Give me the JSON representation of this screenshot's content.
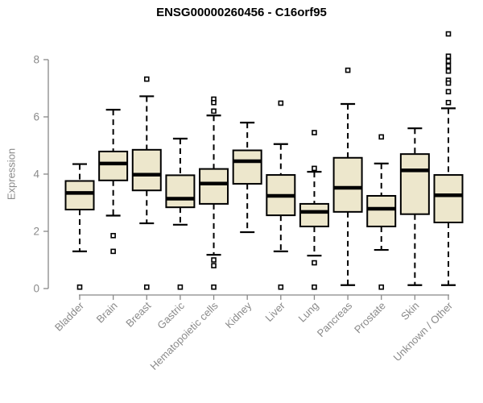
{
  "chart_data": {
    "type": "boxplot",
    "title": "ENSG00000260456 - C16orf95",
    "ylabel": "Expression",
    "xlabel": "",
    "ylim": [
      0,
      8
    ],
    "yticks": [
      0,
      2,
      4,
      6,
      8
    ],
    "grid": false,
    "legend": "none",
    "categories": [
      "Bladder",
      "Brain",
      "Breast",
      "Gastric",
      "Hematopoietic cells",
      "Kidney",
      "Liver",
      "Lung",
      "Pancreas",
      "Prostate",
      "Skin",
      "Unknown / Other"
    ],
    "series": [
      {
        "category": "Bladder",
        "low": 1.3,
        "q1": 2.76,
        "median": 3.34,
        "q3": 3.76,
        "high": 4.35,
        "outliers": [
          0.05
        ]
      },
      {
        "category": "Brain",
        "low": 2.55,
        "q1": 3.78,
        "median": 4.37,
        "q3": 4.79,
        "high": 6.25,
        "outliers": [
          1.85,
          1.3
        ]
      },
      {
        "category": "Breast",
        "low": 2.28,
        "q1": 3.43,
        "median": 3.98,
        "q3": 4.85,
        "high": 6.72,
        "outliers": [
          7.32,
          0.05
        ]
      },
      {
        "category": "Gastric",
        "low": 2.23,
        "q1": 2.84,
        "median": 3.14,
        "q3": 3.96,
        "high": 5.24,
        "outliers": [
          0.05
        ]
      },
      {
        "category": "Hematopoietic cells",
        "low": 1.18,
        "q1": 2.96,
        "median": 3.67,
        "q3": 4.18,
        "high": 6.05,
        "outliers": [
          6.62,
          6.5,
          6.2,
          1.0,
          0.8,
          0.05
        ]
      },
      {
        "category": "Kidney",
        "low": 1.97,
        "q1": 3.66,
        "median": 4.45,
        "q3": 4.83,
        "high": 5.8,
        "outliers": []
      },
      {
        "category": "Liver",
        "low": 1.3,
        "q1": 2.56,
        "median": 3.24,
        "q3": 3.97,
        "high": 5.05,
        "outliers": [
          6.48,
          0.05
        ]
      },
      {
        "category": "Lung",
        "low": 1.15,
        "q1": 2.17,
        "median": 2.68,
        "q3": 2.96,
        "high": 4.08,
        "outliers": [
          5.45,
          4.2,
          0.9,
          0.05
        ]
      },
      {
        "category": "Pancreas",
        "low": 0.12,
        "q1": 2.68,
        "median": 3.52,
        "q3": 4.57,
        "high": 6.45,
        "outliers": [
          7.63
        ]
      },
      {
        "category": "Prostate",
        "low": 1.35,
        "q1": 2.17,
        "median": 2.79,
        "q3": 3.24,
        "high": 4.37,
        "outliers": [
          5.3,
          0.05
        ]
      },
      {
        "category": "Skin",
        "low": 0.12,
        "q1": 2.6,
        "median": 4.13,
        "q3": 4.7,
        "high": 5.6,
        "outliers": []
      },
      {
        "category": "Unknown / Other",
        "low": 0.12,
        "q1": 2.31,
        "median": 3.26,
        "q3": 3.97,
        "high": 6.3,
        "outliers": [
          8.9,
          8.12,
          7.95,
          7.78,
          7.6,
          7.28,
          7.18,
          6.88,
          6.5
        ]
      }
    ],
    "colors": {
      "box_fill": "#ede7cc",
      "box_stroke": "#000000",
      "median": "#000000",
      "whisker": "#000000",
      "outlier_fill": "#ffffff",
      "outlier_stroke": "#000000",
      "axis": "#888888",
      "tick_label": "#8a8a8a",
      "title": "#000000"
    }
  }
}
